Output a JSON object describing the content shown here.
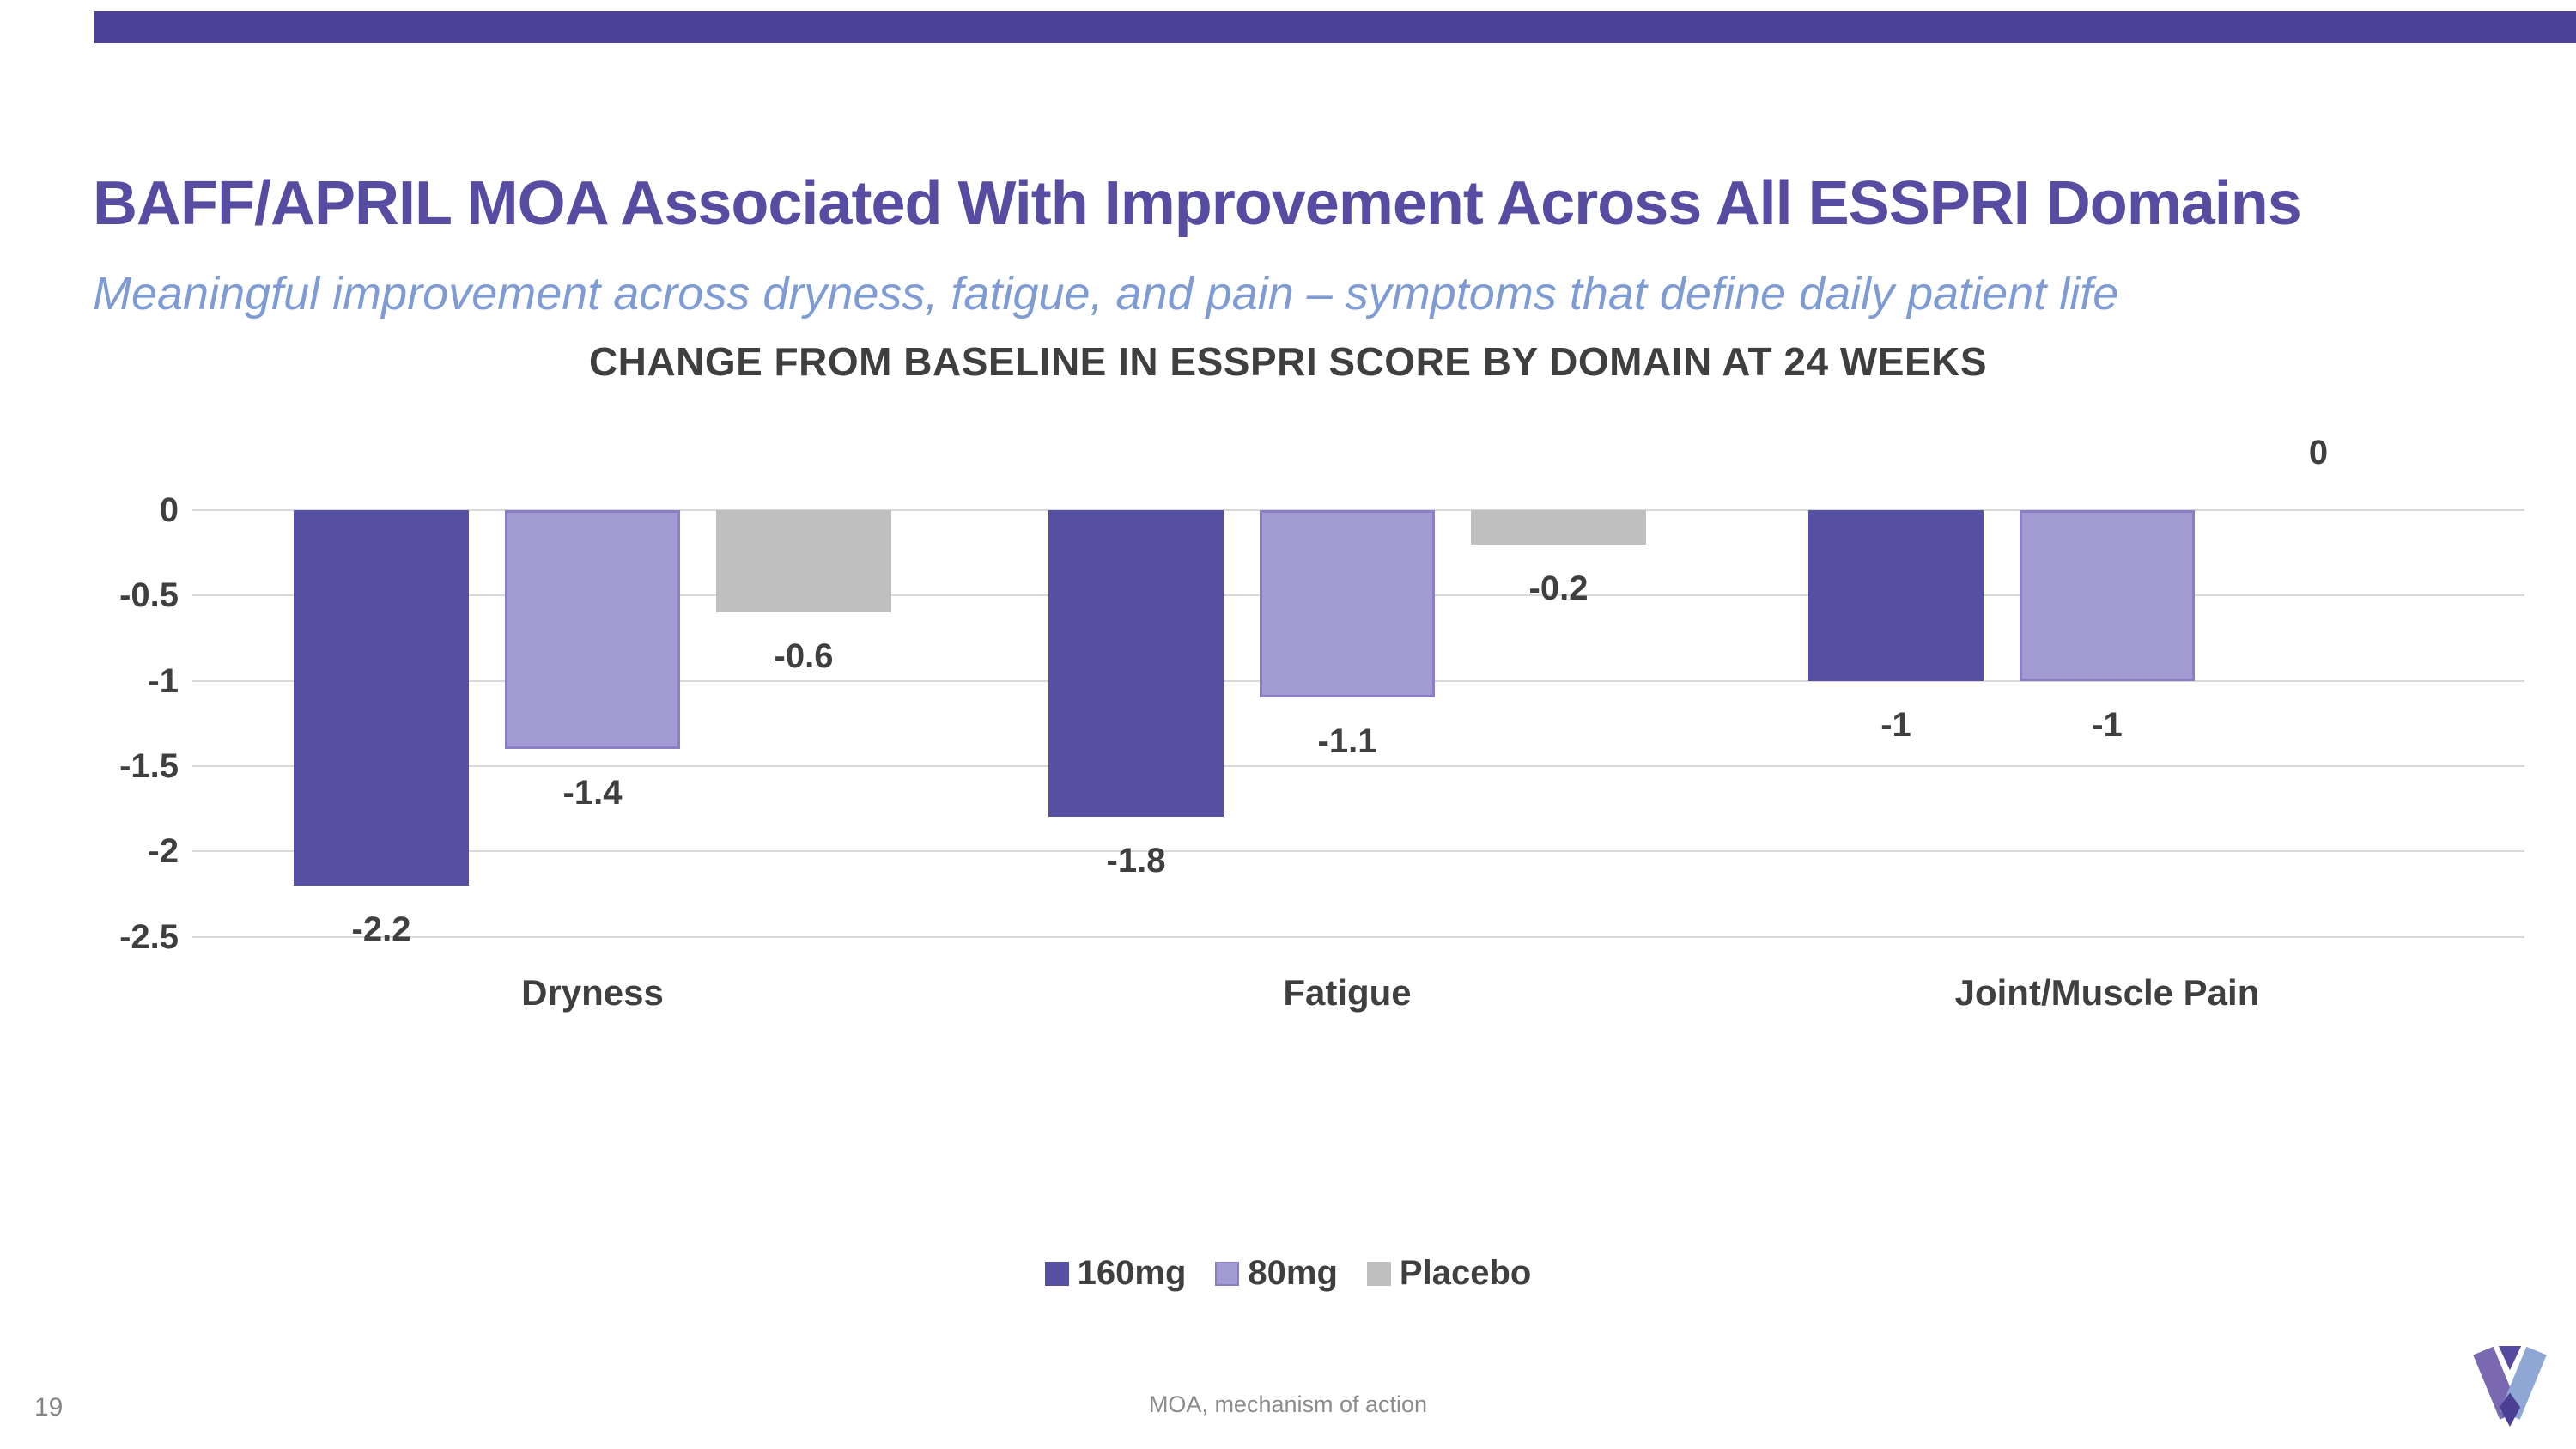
{
  "slide": {
    "title": "BAFF/APRIL MOA Associated With Improvement Across All ESSPRI Domains",
    "subtitle": "Meaningful improvement across dryness, fatigue, and pain – symptoms that define daily patient life",
    "page_number": "19",
    "footnote": "MOA, mechanism of action",
    "colors": {
      "accent_bar": "#4C4199",
      "title_text": "#564CA2",
      "subtitle_text": "#7E9BD3",
      "chart_text": "#3F3F3F",
      "gridline": "#D9D9D9",
      "footer_text": "#8C8C8C"
    },
    "logo_icon": "v-logo"
  },
  "chart_data": {
    "type": "bar",
    "title": "CHANGE FROM BASELINE IN ESSPRI SCORE BY DOMAIN AT 24 WEEKS",
    "categories": [
      "Dryness",
      "Fatigue",
      "Joint/Muscle Pain"
    ],
    "series": [
      {
        "name": "160mg",
        "color": "#5650A2",
        "border": "#4A4491",
        "values": [
          -2.2,
          -1.8,
          -1
        ],
        "labels": [
          "-2.2",
          "-1.8",
          "-1"
        ]
      },
      {
        "name": "80mg",
        "color": "#A29AD2",
        "border": "#8A7EC4",
        "values": [
          -1.4,
          -1.1,
          -1
        ],
        "labels": [
          "-1.4",
          "-1.1",
          "-1"
        ]
      },
      {
        "name": "Placebo",
        "color": "#BFBFBF",
        "border": "#BFBFBF",
        "values": [
          -0.6,
          -0.2,
          0
        ],
        "labels": [
          "-0.6",
          "-0.2",
          "0"
        ]
      }
    ],
    "y_ticks": [
      "0",
      "-0.5",
      "-1",
      "-1.5",
      "-2",
      "-2.5"
    ],
    "ylim": [
      -2.5,
      0
    ],
    "grid": true,
    "legend_position": "bottom",
    "xlabel": "",
    "ylabel": ""
  }
}
